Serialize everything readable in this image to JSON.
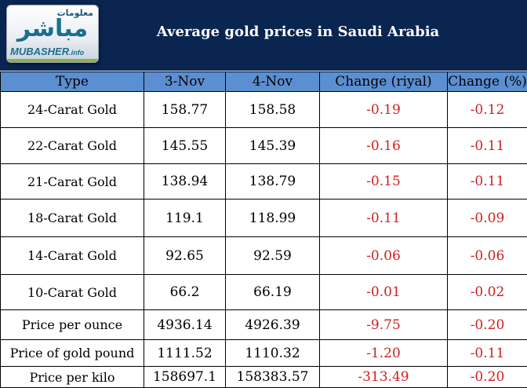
{
  "logo": {
    "arabic_small": "معلومات",
    "arabic_big": "مباشر",
    "english_main": "MUBASHER",
    "english_suffix": ".info"
  },
  "header": {
    "title": "Average gold prices in Saudi Arabia"
  },
  "table": {
    "headers": [
      "Type",
      "3-Nov",
      "4-Nov",
      "Change (riyal)",
      "Change (%)"
    ],
    "rows": [
      [
        "24-Carat Gold",
        "158.77",
        "158.58",
        "-0.19",
        "-0.12"
      ],
      [
        "22-Carat Gold",
        "145.55",
        "145.39",
        "-0.16",
        "-0.11"
      ],
      [
        "21-Carat Gold",
        "138.94",
        "138.79",
        "-0.15",
        "-0.11"
      ],
      [
        "18-Carat Gold",
        "119.1",
        "118.99",
        "-0.11",
        "-0.09"
      ],
      [
        "14-Carat Gold",
        "92.65",
        "92.59",
        "-0.06",
        "-0.06"
      ],
      [
        "10-Carat Gold",
        "66.2",
        "66.19",
        "-0.01",
        "-0.02"
      ],
      [
        "Price per ounce",
        "4936.14",
        "4926.39",
        "-9.75",
        "-0.20"
      ],
      [
        "Price of gold pound",
        "1111.52",
        "1110.32",
        "-1.20",
        "-0.11"
      ],
      [
        "Price per kilo",
        "158697.1",
        "158383.57",
        "-313.49",
        "-0.20"
      ]
    ]
  },
  "colors": {
    "header_bg": "#0a2550",
    "column_header_bg": "#5b8fd1",
    "negative_text": "#d21f1f"
  }
}
